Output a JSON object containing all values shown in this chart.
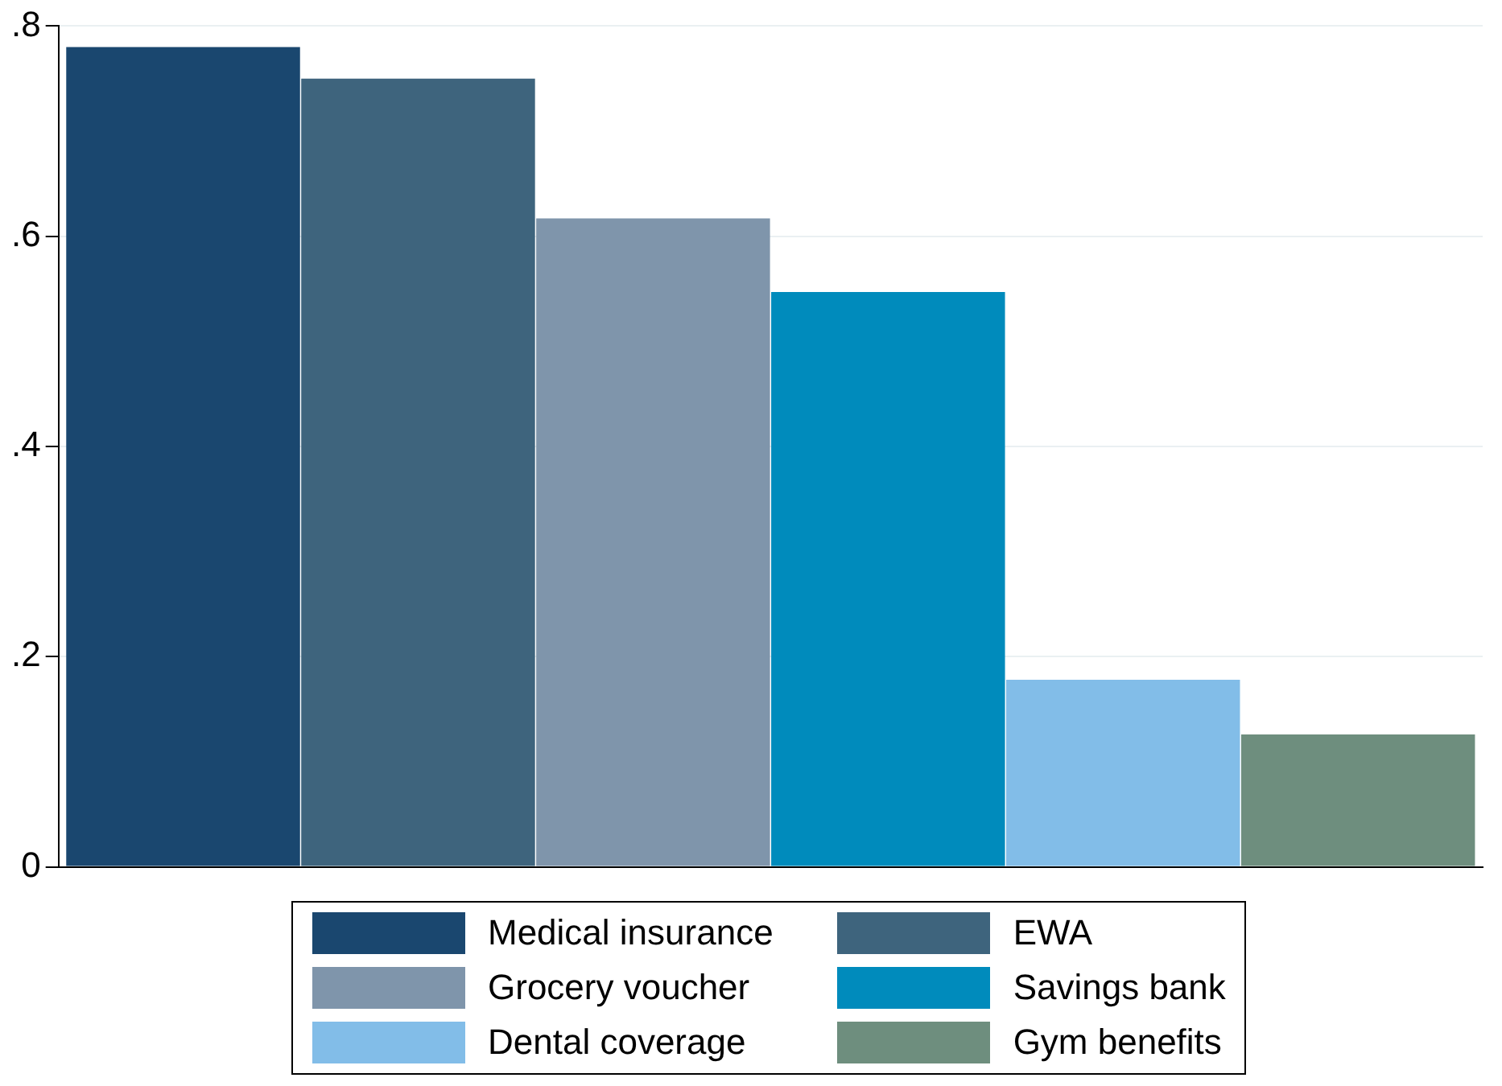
{
  "chart_data": {
    "type": "bar",
    "categories": [
      null
    ],
    "series": [
      {
        "name": "Medical insurance",
        "color": "#1a476f",
        "values": [
          0.78
        ]
      },
      {
        "name": "EWA",
        "color": "#3e647d",
        "values": [
          0.75
        ]
      },
      {
        "name": "Grocery voucher",
        "color": "#7f95ab",
        "values": [
          0.617
        ]
      },
      {
        "name": "Savings bank",
        "color": "#008bbc",
        "values": [
          0.547
        ]
      },
      {
        "name": "Dental coverage",
        "color": "#82bde8",
        "values": [
          0.178
        ]
      },
      {
        "name": "Gym benefits",
        "color": "#6e8e7e",
        "values": [
          0.126
        ]
      }
    ],
    "ylim": [
      0,
      0.8
    ],
    "yticks": [
      {
        "value": 0,
        "label": "0"
      },
      {
        "value": 0.2,
        "label": ".2"
      },
      {
        "value": 0.4,
        "label": ".4"
      },
      {
        "value": 0.6,
        "label": ".6"
      },
      {
        "value": 0.8,
        "label": ".8"
      }
    ],
    "grid": "y",
    "legend": "bottom"
  }
}
